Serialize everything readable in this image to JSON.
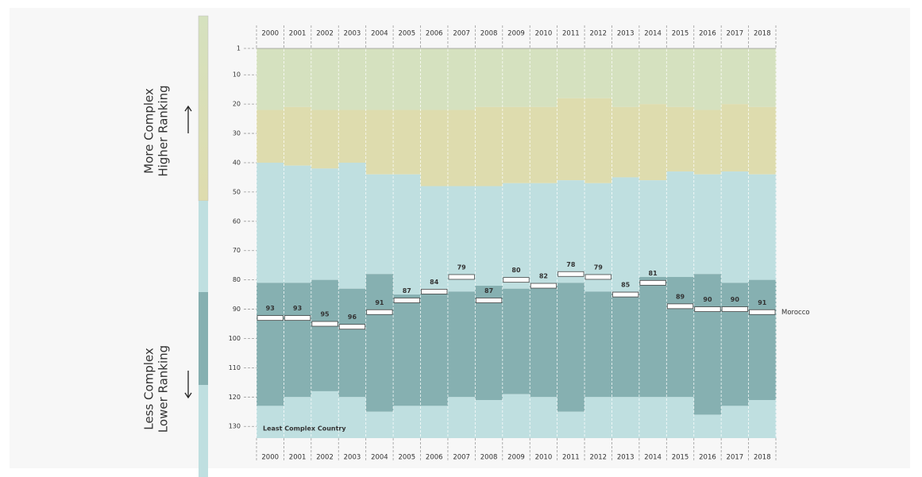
{
  "chart_data": {
    "type": "ranking",
    "side_labels": {
      "top": [
        "More Complex",
        "Higher Ranking"
      ],
      "bottom": [
        "Less Complex",
        "Lower Ranking"
      ]
    },
    "annotation": "Least Complex Country",
    "series_label": "Morocco",
    "categories": [
      "2000",
      "2001",
      "2002",
      "2003",
      "2004",
      "2005",
      "2006",
      "2007",
      "2008",
      "2009",
      "2010",
      "2011",
      "2012",
      "2013",
      "2014",
      "2015",
      "2016",
      "2017",
      "2018"
    ],
    "values": [
      93,
      93,
      95,
      96,
      91,
      87,
      84,
      79,
      87,
      80,
      82,
      78,
      79,
      85,
      81,
      89,
      90,
      90,
      91
    ],
    "bands": [
      {
        "color": "#d5e1bf",
        "values": [
          22,
          21,
          22,
          22,
          22,
          22,
          22,
          22,
          21,
          21,
          21,
          18,
          18,
          21,
          20,
          21,
          22,
          20,
          21
        ]
      },
      {
        "color": "#dedcae",
        "values": [
          40,
          41,
          42,
          40,
          44,
          44,
          48,
          48,
          48,
          47,
          47,
          46,
          47,
          45,
          46,
          43,
          44,
          43,
          44
        ]
      },
      {
        "color": "#bfdfe0",
        "values": [
          81,
          81,
          80,
          83,
          78,
          85,
          84,
          84,
          82,
          83,
          82,
          81,
          84,
          84,
          79,
          79,
          78,
          81,
          80
        ]
      },
      {
        "color": "#86b0b1",
        "values": [
          123,
          120,
          118,
          120,
          125,
          123,
          123,
          120,
          121,
          119,
          120,
          125,
          120,
          120,
          120,
          120,
          126,
          123,
          121
        ]
      }
    ],
    "bottom_color": "#bfdfe0",
    "ylim": [
      1,
      134
    ],
    "yticks": [
      1,
      10,
      20,
      30,
      40,
      50,
      60,
      70,
      80,
      90,
      100,
      110,
      120,
      130
    ]
  }
}
